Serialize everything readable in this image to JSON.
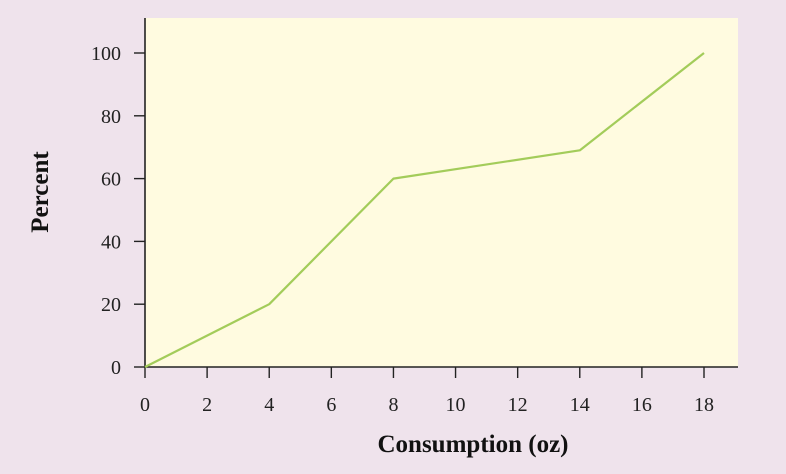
{
  "colors": {
    "background": "#efe3ec",
    "plot_area": "#fffbe0",
    "line": "#a3cc5a",
    "axis": "#222222"
  },
  "chart_data": {
    "type": "line",
    "xlabel": "Consumption (oz)",
    "ylabel": "Percent",
    "xlim": [
      0,
      19
    ],
    "ylim": [
      0,
      111
    ],
    "x_ticks": [
      0,
      2,
      4,
      6,
      8,
      10,
      12,
      14,
      16,
      18
    ],
    "y_ticks": [
      0,
      20,
      40,
      60,
      80,
      100
    ],
    "grid": false,
    "legend": false,
    "series": [
      {
        "x": [
          0,
          4,
          8,
          14,
          18
        ],
        "y": [
          0,
          20,
          60,
          69,
          100
        ]
      }
    ]
  }
}
